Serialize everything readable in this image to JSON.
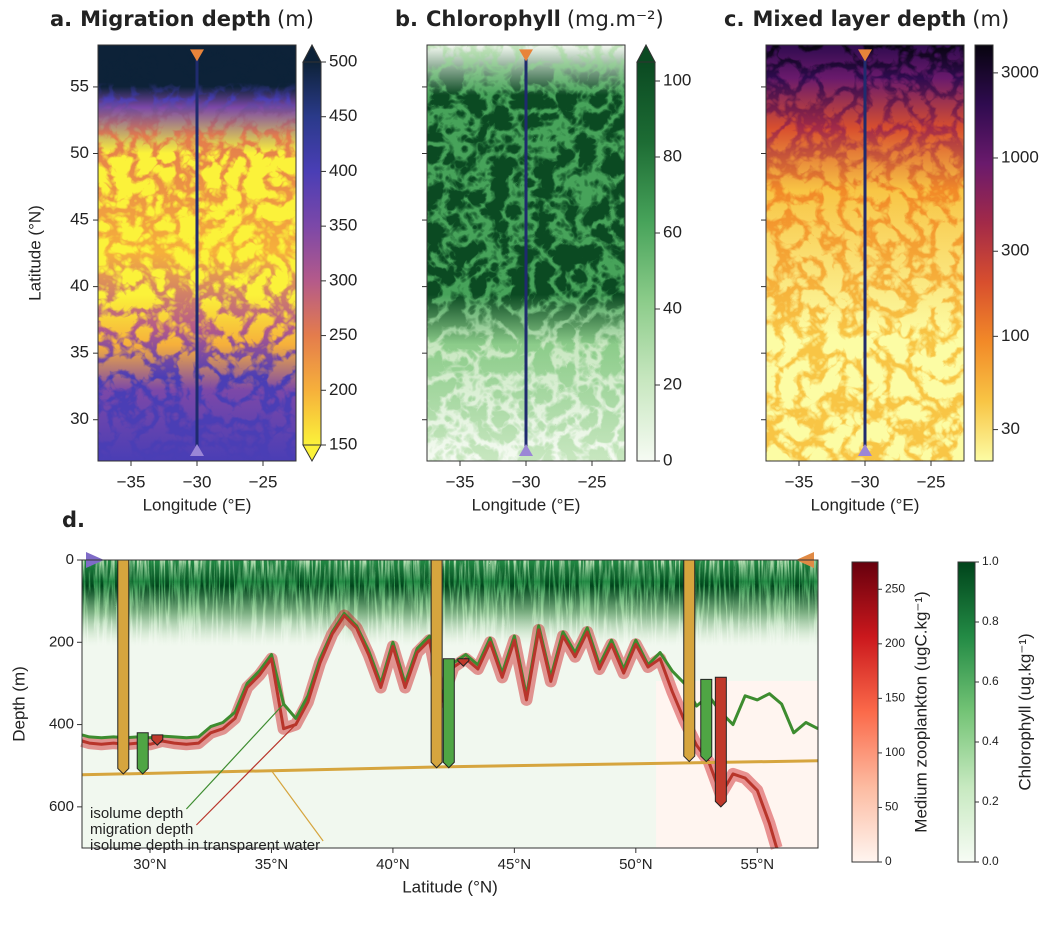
{
  "chart_data": [
    {
      "type": "map",
      "panel": "a.",
      "title": "Migration depth",
      "unit": "(m)",
      "xlabel": "Longitude (°E)",
      "ylabel": "Latitude (°N)",
      "xlim": [
        -37.5,
        -22.5
      ],
      "ylim": [
        26.9,
        58.15
      ],
      "xticks": [
        {
          "value": -35,
          "label": "−35"
        },
        {
          "value": -30,
          "label": "−30"
        },
        {
          "value": -25,
          "label": "−25"
        }
      ],
      "yticks": [
        30,
        35,
        40,
        45,
        50,
        55
      ],
      "colorbar": {
        "lim": [
          150,
          500
        ],
        "ticks": [
          150,
          200,
          250,
          300,
          350,
          400,
          450,
          500
        ],
        "extend": "both",
        "colors": [
          "#fbf23a",
          "#f6b03b",
          "#e47c4c",
          "#b45a8a",
          "#7c48a8",
          "#4a3eb5",
          "#2a3a8a",
          "#0d2238"
        ]
      },
      "transect": {
        "lon": -30,
        "lat": [
          57.3,
          27.8
        ],
        "color": "#1f2b6e",
        "marker_colors": [
          "#e8843a",
          "#9b86d6"
        ]
      }
    },
    {
      "type": "map",
      "panel": "b.",
      "title": "Chlorophyll",
      "unit": "(mg.m⁻²)",
      "xlabel": "Longitude (°E)",
      "xlim": [
        -37.5,
        -22.5
      ],
      "ylim": [
        26.9,
        58.15
      ],
      "xticks": [
        {
          "value": -35,
          "label": "−35"
        },
        {
          "value": -30,
          "label": "−30"
        },
        {
          "value": -25,
          "label": "−25"
        }
      ],
      "yticks": [
        30,
        35,
        40,
        45,
        50,
        55
      ],
      "ytick_labels": false,
      "colorbar": {
        "lim": [
          0,
          105
        ],
        "ticks": [
          0,
          20,
          40,
          60,
          80,
          100
        ],
        "extend": "max",
        "colors": [
          "#f6fbf3",
          "#c8e7c0",
          "#8ccc8a",
          "#47a35a",
          "#1d6c34",
          "#0b4a22"
        ]
      },
      "transect": {
        "lon": -30,
        "lat": [
          57.3,
          27.8
        ],
        "color": "#1f2b6e",
        "marker_colors": [
          "#e8843a",
          "#9b86d6"
        ]
      }
    },
    {
      "type": "map",
      "panel": "c.",
      "title": "Mixed layer depth",
      "unit": "(m)",
      "xlabel": "Longitude (°E)",
      "xlim": [
        -37.5,
        -22.5
      ],
      "ylim": [
        26.9,
        58.15
      ],
      "xticks": [
        {
          "value": -35,
          "label": "−35"
        },
        {
          "value": -30,
          "label": "−30"
        },
        {
          "value": -25,
          "label": "−25"
        }
      ],
      "yticks": [
        30,
        35,
        40,
        45,
        50,
        55
      ],
      "ytick_labels": false,
      "colorbar": {
        "lim": [
          20,
          4300
        ],
        "log": true,
        "ticks": [
          30,
          100,
          300,
          1000,
          3000
        ],
        "extend": "neither",
        "colors": [
          "#fcfca4",
          "#f8c545",
          "#f28a28",
          "#d84f2e",
          "#a32a48",
          "#6a1a6c",
          "#2f0b4f",
          "#07040f"
        ]
      },
      "transect": {
        "lon": -30,
        "lat": [
          57.3,
          27.8
        ],
        "color": "#1f2b6e",
        "marker_colors": [
          "#e8843a",
          "#9b86d6"
        ]
      }
    },
    {
      "type": "section",
      "panel": "d.",
      "xlabel": "Latitude (°N)",
      "ylabel": "Depth (m)",
      "xlim": [
        27.2,
        57.5
      ],
      "ylim": [
        700,
        0
      ],
      "xticks": [
        {
          "value": 30,
          "label": "30°N"
        },
        {
          "value": 35,
          "label": "35°N"
        },
        {
          "value": 40,
          "label": "40°N"
        },
        {
          "value": 45,
          "label": "45°N"
        },
        {
          "value": 50,
          "label": "50°N"
        },
        {
          "value": 55,
          "label": "55°N"
        }
      ],
      "yticks": [
        0,
        200,
        400,
        600
      ],
      "series": [
        {
          "name": "isolume depth",
          "color": "#3d8c2f",
          "x": [
            27.2,
            27.5,
            28,
            28.5,
            29,
            29.5,
            30,
            30.5,
            31,
            31.5,
            32,
            32.5,
            33,
            33.5,
            34,
            34.5,
            35,
            35.5,
            36,
            36.5,
            37,
            37.5,
            38,
            38.5,
            39,
            39.5,
            40,
            40.5,
            41,
            41.5,
            42,
            42.5,
            43,
            43.5,
            44,
            44.5,
            45,
            45.5,
            46,
            46.5,
            47,
            47.5,
            48,
            48.5,
            49,
            49.5,
            50,
            50.5,
            51,
            51.5,
            52,
            52.5,
            53,
            53.5,
            54,
            54.5,
            55,
            55.5,
            56,
            56.5,
            57,
            57.5
          ],
          "values": [
            425,
            430,
            432,
            430,
            432,
            430,
            432,
            428,
            430,
            432,
            430,
            405,
            395,
            370,
            300,
            270,
            230,
            350,
            385,
            330,
            240,
            175,
            130,
            160,
            220,
            300,
            200,
            300,
            215,
            185,
            335,
            250,
            230,
            255,
            190,
            275,
            185,
            330,
            160,
            285,
            175,
            225,
            165,
            255,
            195,
            265,
            195,
            255,
            225,
            270,
            300,
            355,
            330,
            370,
            400,
            330,
            340,
            325,
            350,
            420,
            395,
            410
          ]
        },
        {
          "name": "migration depth",
          "color": "#b8352b",
          "x": [
            27.2,
            27.5,
            28,
            28.5,
            29,
            29.5,
            30,
            30.5,
            31,
            31.5,
            32,
            32.5,
            33,
            33.5,
            34,
            34.5,
            35,
            35.5,
            36,
            36.5,
            37,
            37.5,
            38,
            38.5,
            39,
            39.5,
            40,
            40.5,
            41,
            41.5,
            42,
            42.5,
            43,
            43.5,
            44,
            44.5,
            45,
            45.5,
            46,
            46.5,
            47,
            47.5,
            48,
            48.5,
            49,
            49.5,
            50,
            50.5,
            51,
            51.5,
            52,
            52.5,
            53,
            53.5,
            54,
            54.5,
            55,
            55.5,
            55.8
          ],
          "values": [
            440,
            445,
            448,
            445,
            448,
            445,
            448,
            440,
            445,
            448,
            445,
            420,
            410,
            385,
            310,
            280,
            240,
            410,
            400,
            345,
            250,
            180,
            135,
            165,
            230,
            310,
            210,
            310,
            225,
            195,
            345,
            260,
            240,
            265,
            200,
            285,
            195,
            340,
            170,
            295,
            185,
            235,
            175,
            265,
            205,
            275,
            205,
            260,
            240,
            320,
            390,
            450,
            490,
            570,
            520,
            530,
            560,
            640,
            700
          ]
        },
        {
          "name": "isolume depth in transparent water",
          "color": "#d6a53e",
          "x": [
            27.2,
            35,
            42,
            50,
            57.5
          ],
          "values": [
            522,
            512,
            503,
            495,
            488
          ]
        }
      ],
      "depth_bars": {
        "x": [
          28.9,
          29.7,
          30.3,
          41.8,
          42.3,
          42.9,
          52.2,
          52.9,
          53.5
        ],
        "top": [
          0,
          420,
          425,
          0,
          240,
          240,
          0,
          290,
          285
        ],
        "bottom": [
          520,
          520,
          450,
          505,
          505,
          258,
          490,
          490,
          600
        ],
        "colors": [
          "#d6a53e",
          "#4fa544",
          "#c0392b",
          "#d6a53e",
          "#4fa544",
          "#c0392b",
          "#d6a53e",
          "#4fa544",
          "#c0392b"
        ]
      },
      "colorbars": [
        {
          "label": "Medium zooplankton (ugC.kg⁻¹)",
          "lim": [
            0,
            275
          ],
          "ticks": [
            0,
            50,
            100,
            150,
            200,
            250
          ],
          "colors": [
            "#fff5f0",
            "#fcbba1",
            "#fb6a4a",
            "#cb181d",
            "#67000d"
          ]
        },
        {
          "label": "Chlorophyll (ug.kg⁻¹)",
          "lim": [
            0,
            1
          ],
          "ticks": [
            {
              "value": 0,
              "label": "0.0"
            },
            {
              "value": 0.2,
              "label": "0.2"
            },
            {
              "value": 0.4,
              "label": "0.4"
            },
            {
              "value": 0.6,
              "label": "0.6"
            },
            {
              "value": 0.8,
              "label": "0.8"
            },
            {
              "value": 1,
              "label": "1.0"
            }
          ],
          "colors": [
            "#f7fcf5",
            "#c7e9c0",
            "#74c476",
            "#238b45",
            "#00441b"
          ]
        }
      ]
    }
  ]
}
